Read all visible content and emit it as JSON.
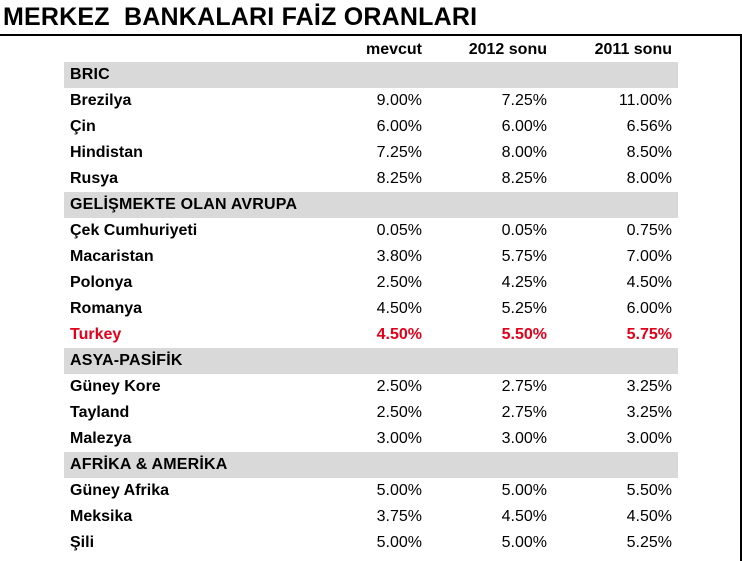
{
  "title": "MERKEZ  BANKALARI FAİZ ORANLARI",
  "columns": [
    "mevcut",
    "2012 sonu",
    "2011 sonu"
  ],
  "colors": {
    "group_bg": "#d9d9d9",
    "highlight": "#e3001b"
  },
  "groups": [
    {
      "name": "BRIC",
      "rows": [
        {
          "name": "Brezilya",
          "values": [
            "9.00%",
            "7.25%",
            "11.00%"
          ]
        },
        {
          "name": "Çin",
          "values": [
            "6.00%",
            "6.00%",
            "6.56%"
          ]
        },
        {
          "name": "Hindistan",
          "values": [
            "7.25%",
            "8.00%",
            "8.50%"
          ]
        },
        {
          "name": "Rusya",
          "values": [
            "8.25%",
            "8.25%",
            "8.00%"
          ]
        }
      ]
    },
    {
      "name": "GELİŞMEKTE OLAN AVRUPA",
      "rows": [
        {
          "name": "Çek Cumhuriyeti",
          "values": [
            "0.05%",
            "0.05%",
            "0.75%"
          ]
        },
        {
          "name": "Macaristan",
          "values": [
            "3.80%",
            "5.75%",
            "7.00%"
          ]
        },
        {
          "name": "Polonya",
          "values": [
            "2.50%",
            "4.25%",
            "4.50%"
          ]
        },
        {
          "name": "Romanya",
          "values": [
            "4.50%",
            "5.25%",
            "6.00%"
          ]
        },
        {
          "name": "Turkey",
          "values": [
            "4.50%",
            "5.50%",
            "5.75%"
          ],
          "highlight": true
        }
      ]
    },
    {
      "name": "ASYA-PASİFİK",
      "rows": [
        {
          "name": "Güney Kore",
          "values": [
            "2.50%",
            "2.75%",
            "3.25%"
          ]
        },
        {
          "name": "Tayland",
          "values": [
            "2.50%",
            "2.75%",
            "3.25%"
          ]
        },
        {
          "name": "Malezya",
          "values": [
            "3.00%",
            "3.00%",
            "3.00%"
          ]
        }
      ]
    },
    {
      "name": "AFRİKA & AMERİKA",
      "rows": [
        {
          "name": "Güney Afrika",
          "values": [
            "5.00%",
            "5.00%",
            "5.50%"
          ]
        },
        {
          "name": "Meksika",
          "values": [
            "3.75%",
            "4.50%",
            "4.50%"
          ]
        },
        {
          "name": "Şili",
          "values": [
            "5.00%",
            "5.00%",
            "5.25%"
          ]
        }
      ]
    }
  ]
}
